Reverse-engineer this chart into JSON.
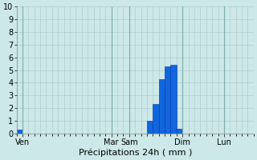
{
  "title": "",
  "xlabel": "Précipitations 24h ( mm )",
  "ylabel": "",
  "ylim": [
    0,
    10
  ],
  "yticks": [
    0,
    1,
    2,
    3,
    4,
    5,
    6,
    7,
    8,
    9,
    10
  ],
  "background_color": "#cce8e8",
  "grid_color": "#b0cccc",
  "bar_color": "#1166dd",
  "bar_edge_color": "#0033aa",
  "n_bars": 40,
  "bar_values": [
    0.3,
    0,
    0,
    0,
    0,
    0,
    0,
    0,
    0,
    0,
    0,
    0,
    0,
    0,
    0,
    0,
    0,
    0,
    0,
    0,
    0,
    0,
    1.0,
    2.3,
    4.3,
    5.3,
    5.4,
    0.4,
    0,
    0,
    0,
    0,
    0,
    0,
    0,
    0,
    0,
    0,
    0,
    0
  ],
  "xtick_positions": [
    1,
    16,
    19,
    28,
    35
  ],
  "xtick_labels": [
    "Ven",
    "Mar",
    "Sam",
    "Dim",
    "Lun"
  ],
  "xlabel_fontsize": 8,
  "tick_fontsize": 7,
  "ylabel_fontsize": 7
}
